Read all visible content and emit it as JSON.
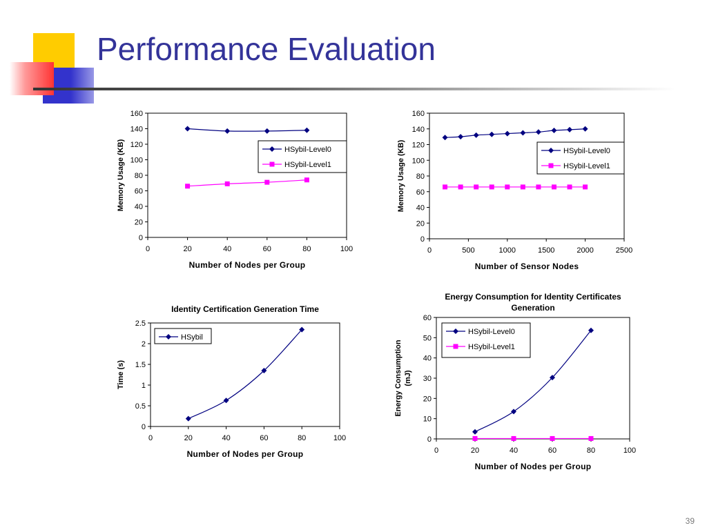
{
  "slide": {
    "title": "Performance Evaluation",
    "page_number": "39",
    "colors": {
      "title": "#333399",
      "level0": "#000080",
      "level1": "#ff00ff",
      "deco_yellow": "#ffcc00",
      "deco_blue": "#3333cc",
      "deco_red": "#ff3333"
    }
  },
  "chart_data": [
    {
      "type": "line",
      "title": "",
      "xlabel": "Number of Nodes per Group",
      "ylabel": "Memory Usage (KB)",
      "xlim": [
        0,
        100
      ],
      "ylim": [
        0,
        160
      ],
      "xticks": [
        0,
        20,
        40,
        60,
        80,
        100
      ],
      "yticks": [
        0,
        20,
        40,
        60,
        80,
        100,
        120,
        140,
        160
      ],
      "legend": "right",
      "series": [
        {
          "name": "HSybil-Level0",
          "marker": "diamond",
          "color": "#000080",
          "x": [
            20,
            40,
            60,
            80
          ],
          "y": [
            140,
            137,
            137,
            138
          ]
        },
        {
          "name": "HSybil-Level1",
          "marker": "square",
          "color": "#ff00ff",
          "x": [
            20,
            40,
            60,
            80
          ],
          "y": [
            66,
            69,
            71,
            74
          ]
        }
      ]
    },
    {
      "type": "line",
      "title": "",
      "xlabel": "Number of Sensor Nodes",
      "ylabel": "Memory Usage (KB)",
      "xlim": [
        0,
        2500
      ],
      "ylim": [
        0,
        160
      ],
      "xticks": [
        0,
        500,
        1000,
        1500,
        2000,
        2500
      ],
      "yticks": [
        0,
        20,
        40,
        60,
        80,
        100,
        120,
        140,
        160
      ],
      "legend": "right",
      "series": [
        {
          "name": "HSybil-Level0",
          "marker": "diamond",
          "color": "#000080",
          "x": [
            200,
            400,
            600,
            800,
            1000,
            1200,
            1400,
            1600,
            1800,
            2000
          ],
          "y": [
            129,
            130,
            132,
            133,
            134,
            135,
            136,
            138,
            139,
            140
          ]
        },
        {
          "name": "HSybil-Level1",
          "marker": "square",
          "color": "#ff00ff",
          "x": [
            200,
            400,
            600,
            800,
            1000,
            1200,
            1400,
            1600,
            1800,
            2000
          ],
          "y": [
            66,
            66,
            66,
            66,
            66,
            66,
            66,
            66,
            66,
            66
          ]
        }
      ]
    },
    {
      "type": "line",
      "title": "Identity Certification Generation Time",
      "xlabel": "Number of Nodes per Group",
      "ylabel": "Time (s)",
      "xlim": [
        0,
        100
      ],
      "ylim": [
        0,
        2.5
      ],
      "xticks": [
        0,
        20,
        40,
        60,
        80,
        100
      ],
      "yticks": [
        0,
        0.5,
        1,
        1.5,
        2,
        2.5
      ],
      "legend": "top-left",
      "series": [
        {
          "name": "HSybil",
          "marker": "diamond",
          "color": "#000080",
          "x": [
            20,
            40,
            60,
            80
          ],
          "y": [
            0.19,
            0.63,
            1.35,
            2.34
          ]
        }
      ]
    },
    {
      "type": "line",
      "title": "Energy Consumption for Identity Certificates Generation",
      "xlabel": "Number of Nodes per Group",
      "ylabel": "Energy Consumption (mJ)",
      "xlim": [
        0,
        100
      ],
      "ylim": [
        0,
        60
      ],
      "xticks": [
        0,
        20,
        40,
        60,
        80,
        100
      ],
      "yticks": [
        0,
        10,
        20,
        30,
        40,
        50,
        60
      ],
      "legend": "top-left",
      "series": [
        {
          "name": "HSybil-Level0",
          "marker": "diamond",
          "color": "#000080",
          "x": [
            20,
            40,
            60,
            80
          ],
          "y": [
            3.5,
            13.5,
            30.3,
            53.6
          ]
        },
        {
          "name": "HSybil-Level1",
          "marker": "square",
          "color": "#ff00ff",
          "x": [
            20,
            40,
            60,
            80
          ],
          "y": [
            0.2,
            0.2,
            0.2,
            0.2
          ]
        }
      ]
    }
  ]
}
